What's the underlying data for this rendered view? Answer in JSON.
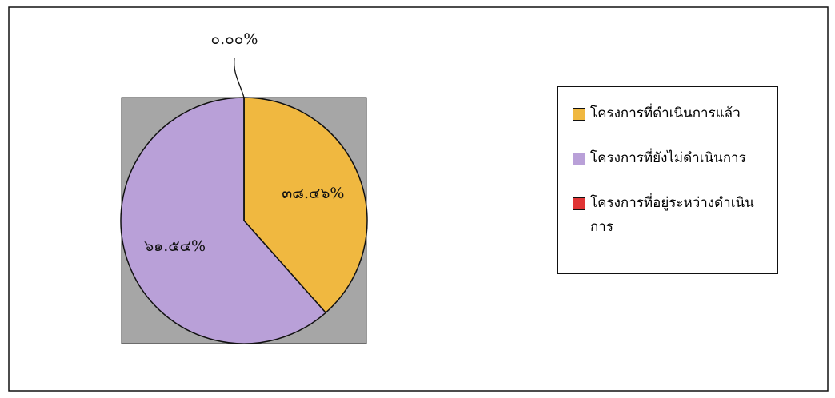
{
  "chart_data": {
    "type": "pie",
    "categories": [
      "โครงการที่ดำเนินการแล้ว",
      "โครงการที่ยังไม่ดำเนินการ",
      "โครงการที่อยู่ระหว่างดำเนินการ"
    ],
    "values": [
      38.46,
      61.54,
      0.0
    ],
    "value_labels": [
      "๓๘.๔๖%",
      "๖๑.๕๔%",
      "๐.๐๐%"
    ],
    "colors": [
      "#f0b840",
      "#b9a0d8",
      "#e03535"
    ],
    "legend": "right"
  }
}
